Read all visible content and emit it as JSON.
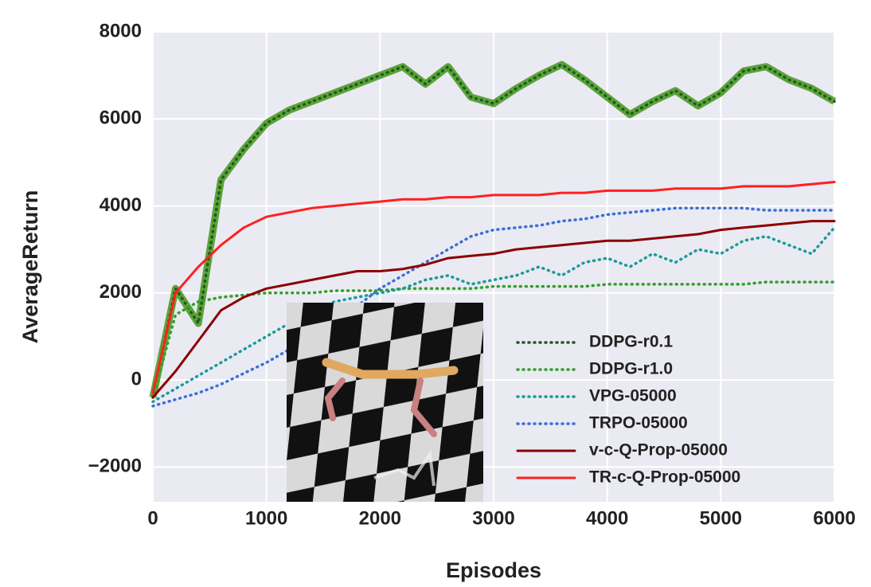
{
  "chart_data": {
    "type": "line",
    "xlabel": "Episodes",
    "ylabel": "AverageReturn",
    "xlim": [
      0,
      6000
    ],
    "ylim": [
      -2800,
      8000
    ],
    "xticks": [
      0,
      1000,
      2000,
      3000,
      4000,
      5000,
      6000
    ],
    "yticks": [
      {
        "value": -2000,
        "label": "−2000"
      },
      0,
      2000,
      4000,
      6000,
      8000
    ],
    "grid": true,
    "legend": "lower right",
    "x": [
      0,
      200,
      400,
      600,
      800,
      1000,
      1200,
      1400,
      1600,
      1800,
      2000,
      2200,
      2400,
      2600,
      2800,
      3000,
      3200,
      3400,
      3600,
      3800,
      4000,
      4200,
      4400,
      4600,
      4800,
      5000,
      5200,
      5400,
      5600,
      5800,
      6000
    ],
    "series": [
      {
        "name": "DDPG-r0.1",
        "color": "#1e5c1e",
        "band": "#5ca33a",
        "linestyle": "dotted",
        "values": [
          -400,
          2100,
          1300,
          4600,
          5300,
          5900,
          6200,
          6400,
          6600,
          6800,
          7000,
          7200,
          6800,
          7200,
          6500,
          6350,
          6700,
          7000,
          7250,
          6900,
          6500,
          6100,
          6400,
          6650,
          6300,
          6600,
          7100,
          7200,
          6900,
          6700,
          6400
        ]
      },
      {
        "name": "DDPG-r1.0",
        "color": "#33a02c",
        "linestyle": "dotted",
        "values": [
          -400,
          1500,
          1800,
          1900,
          1950,
          2000,
          2000,
          2000,
          2050,
          2050,
          2050,
          2100,
          2100,
          2100,
          2100,
          2150,
          2150,
          2150,
          2150,
          2150,
          2200,
          2200,
          2200,
          2200,
          2200,
          2200,
          2200,
          2250,
          2250,
          2250,
          2250
        ]
      },
      {
        "name": "VPG-05000",
        "color": "#1a9a9a",
        "linestyle": "dotted",
        "values": [
          -500,
          -200,
          100,
          400,
          700,
          1000,
          1300,
          1600,
          1800,
          1900,
          2000,
          2100,
          2300,
          2400,
          2200,
          2300,
          2400,
          2600,
          2400,
          2700,
          2800,
          2600,
          2900,
          2700,
          3000,
          2900,
          3200,
          3300,
          3100,
          2900,
          3500
        ]
      },
      {
        "name": "TRPO-05000",
        "color": "#3a6fd8",
        "linestyle": "dotted",
        "values": [
          -600,
          -450,
          -300,
          -100,
          150,
          400,
          700,
          1000,
          1300,
          1700,
          2100,
          2400,
          2700,
          3000,
          3300,
          3450,
          3500,
          3550,
          3650,
          3700,
          3800,
          3850,
          3900,
          3950,
          3950,
          3950,
          3950,
          3900,
          3900,
          3900,
          3900
        ]
      },
      {
        "name": "v-c-Q-Prop-05000",
        "color": "#8b0000",
        "linestyle": "solid",
        "values": [
          -400,
          200,
          900,
          1600,
          1900,
          2100,
          2200,
          2300,
          2400,
          2500,
          2500,
          2550,
          2650,
          2800,
          2850,
          2900,
          3000,
          3050,
          3100,
          3150,
          3200,
          3200,
          3250,
          3300,
          3350,
          3450,
          3500,
          3550,
          3600,
          3650,
          3650
        ]
      },
      {
        "name": "TR-c-Q-Prop-05000",
        "color": "#ff2020",
        "linestyle": "solid",
        "values": [
          -300,
          2000,
          2600,
          3100,
          3500,
          3750,
          3850,
          3950,
          4000,
          4050,
          4100,
          4150,
          4150,
          4200,
          4200,
          4250,
          4250,
          4250,
          4300,
          4300,
          4350,
          4350,
          4350,
          4400,
          4400,
          4400,
          4450,
          4450,
          4450,
          4500,
          4550
        ]
      }
    ]
  }
}
